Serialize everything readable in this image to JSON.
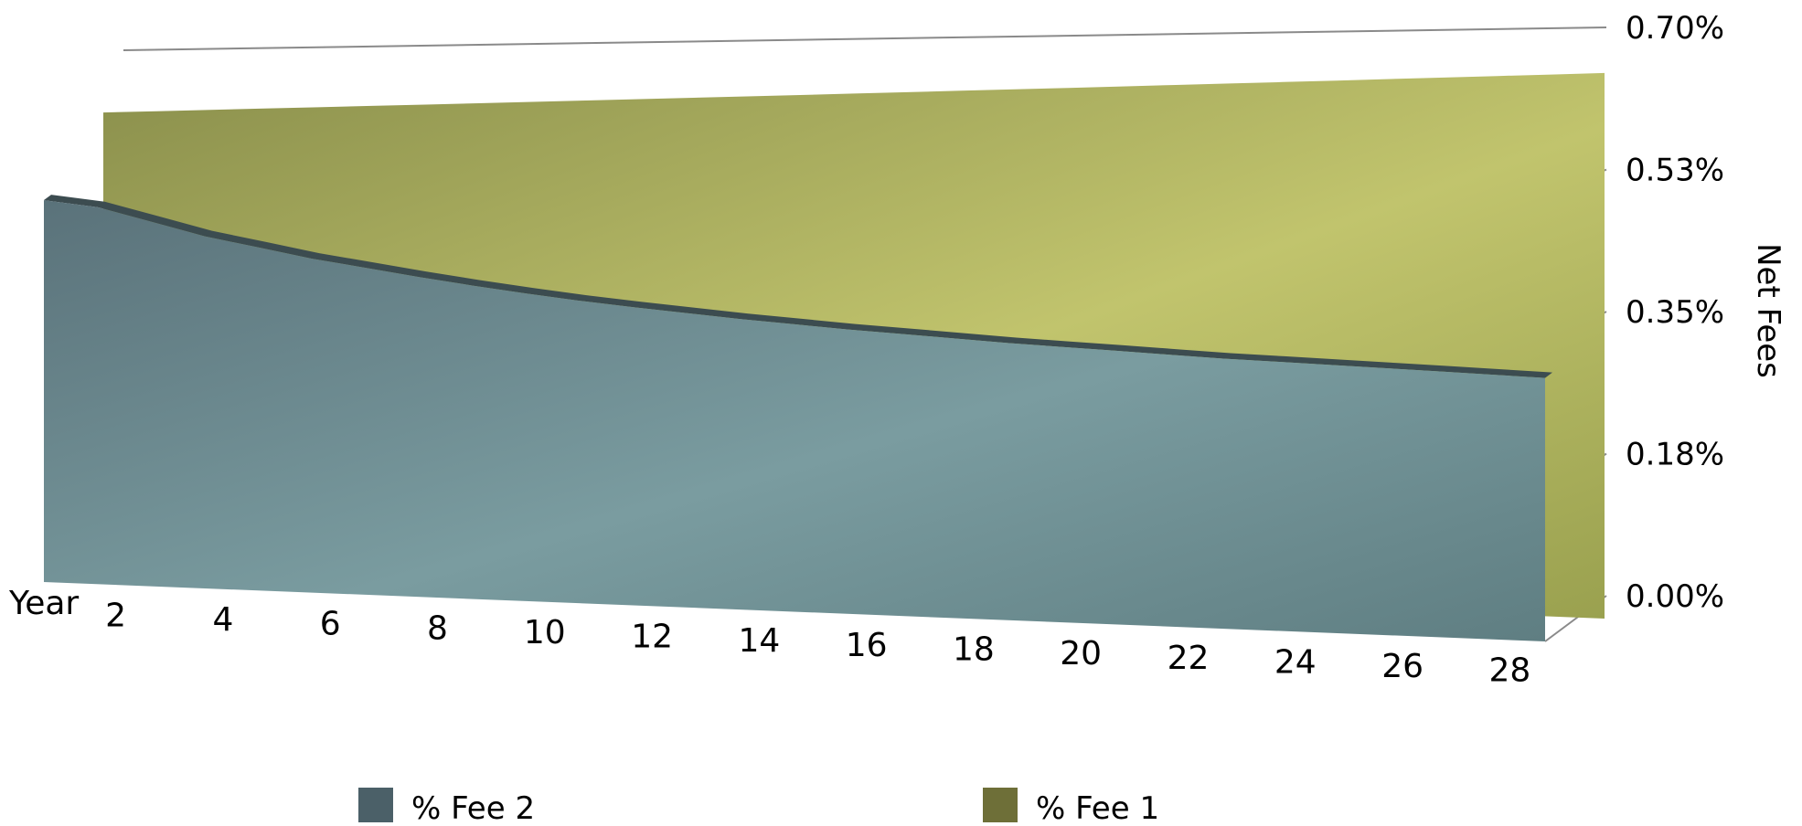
{
  "chart_data": {
    "type": "area",
    "title": "",
    "xlabel": "Year",
    "ylabel": "Net Fees",
    "x": [
      1,
      2,
      3,
      4,
      5,
      6,
      7,
      8,
      9,
      10,
      11,
      12,
      13,
      14,
      15,
      16,
      17,
      18,
      19,
      20,
      21,
      22,
      23,
      24,
      25,
      26,
      27,
      28,
      29
    ],
    "x_ticks": [
      "2",
      "4",
      "6",
      "8",
      "10",
      "12",
      "14",
      "16",
      "18",
      "20",
      "22",
      "24",
      "26",
      "28"
    ],
    "y_ticks": [
      "0.00%",
      "0.18%",
      "0.35%",
      "0.53%",
      "0.70%"
    ],
    "ylim": [
      0,
      0.7
    ],
    "series": [
      {
        "name": "% Fee 2",
        "color": "#4b6068",
        "values": [
          0.53,
          0.52,
          0.5,
          0.48,
          0.465,
          0.45,
          0.438,
          0.426,
          0.415,
          0.405,
          0.396,
          0.388,
          0.381,
          0.374,
          0.368,
          0.362,
          0.357,
          0.352,
          0.347,
          0.343,
          0.339,
          0.335,
          0.331,
          0.328,
          0.325,
          0.322,
          0.319,
          0.316,
          0.313
        ]
      },
      {
        "name": "% Fee 1",
        "color": "#6e6f38",
        "values": [
          0.62,
          0.621,
          0.622,
          0.623,
          0.624,
          0.625,
          0.626,
          0.627,
          0.628,
          0.629,
          0.63,
          0.631,
          0.632,
          0.633,
          0.634,
          0.635,
          0.636,
          0.637,
          0.638,
          0.639,
          0.64,
          0.641,
          0.642,
          0.643,
          0.644,
          0.645,
          0.646,
          0.647,
          0.648
        ]
      }
    ],
    "grid": false,
    "legend_position": "bottom"
  }
}
